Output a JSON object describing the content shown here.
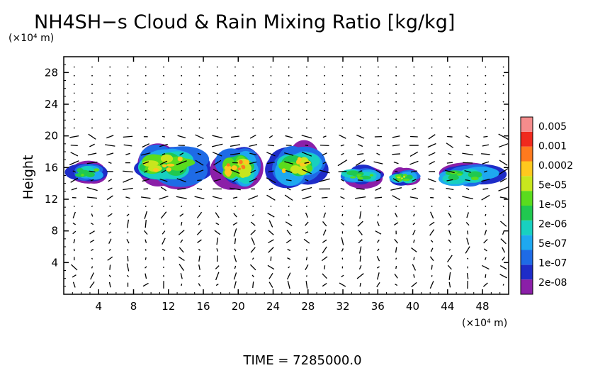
{
  "chart_data": {
    "type": "heatmap",
    "title": "NH4SH−s Cloud & Rain Mixing Ratio [kg/kg]",
    "ylabel": "Height",
    "y_unit": "(×10⁴ m)",
    "x_unit": "(×10⁴ m)",
    "xlim": [
      0,
      51
    ],
    "ylim": [
      0,
      30
    ],
    "x_ticks": [
      4,
      8,
      12,
      16,
      20,
      24,
      28,
      32,
      36,
      40,
      44,
      48
    ],
    "y_ticks": [
      4,
      8,
      12,
      16,
      20,
      24,
      28
    ],
    "colorbar": {
      "scale": "log",
      "range": [
        1e-08,
        0.01
      ],
      "labels": [
        "0.005",
        "0.001",
        "0.0002",
        "5e-05",
        "1e-05",
        "2e-06",
        "5e-07",
        "1e-07",
        "2e-08"
      ],
      "colors": [
        "#8B1FA8",
        "#1E2CC8",
        "#1E6BE6",
        "#1EA8F0",
        "#18D0C0",
        "#20C850",
        "#5ADC1E",
        "#C8E61E",
        "#FFC81E",
        "#FF7A1E",
        "#F02A1E",
        "#F58C8C"
      ]
    },
    "clouds": [
      {
        "x_range": [
          0,
          5.5
        ],
        "y_range": [
          13.8,
          17.0
        ],
        "max_mixing_ratio": 2e-05
      },
      {
        "x_range": [
          7,
          17
        ],
        "y_range": [
          13.2,
          19.5
        ],
        "max_mixing_ratio": 0.0005
      },
      {
        "x_range": [
          17,
          23
        ],
        "y_range": [
          13.0,
          19.0
        ],
        "max_mixing_ratio": 0.001
      },
      {
        "x_range": [
          23,
          30.5
        ],
        "y_range": [
          13.0,
          19.5
        ],
        "max_mixing_ratio": 0.0002
      },
      {
        "x_range": [
          31,
          37
        ],
        "y_range": [
          13.5,
          16.5
        ],
        "max_mixing_ratio": 2e-05
      },
      {
        "x_range": [
          37,
          41
        ],
        "y_range": [
          13.5,
          16.0
        ],
        "max_mixing_ratio": 0.0001
      },
      {
        "x_range": [
          42,
          51
        ],
        "y_range": [
          13.2,
          16.8
        ],
        "max_mixing_ratio": 5e-05
      }
    ],
    "vector_field": "wind vectors overlaid (arrows)"
  },
  "footer": {
    "time_label": "TIME  =  7285000.0"
  }
}
